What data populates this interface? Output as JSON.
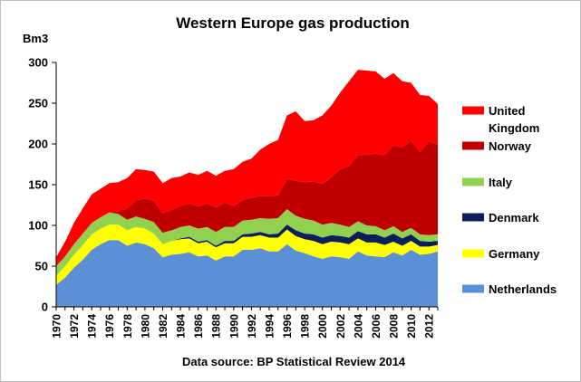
{
  "chart_data": {
    "type": "area",
    "stacked": true,
    "title": "Western Europe gas production",
    "ylabel": "Bm3",
    "xlabel": "",
    "source": "Data source: BP Statistical Review 2014",
    "ylim": [
      0,
      300
    ],
    "yticks": [
      0,
      50,
      100,
      150,
      200,
      250,
      300
    ],
    "xticks": [
      1970,
      1972,
      1974,
      1976,
      1978,
      1980,
      1982,
      1984,
      1986,
      1988,
      1990,
      1992,
      1994,
      1996,
      1998,
      2000,
      2002,
      2004,
      2006,
      2008,
      2010,
      2012
    ],
    "grid": false,
    "legend_position": "right",
    "x": [
      1970,
      1971,
      1972,
      1973,
      1974,
      1975,
      1976,
      1977,
      1978,
      1979,
      1980,
      1981,
      1982,
      1983,
      1984,
      1985,
      1986,
      1987,
      1988,
      1989,
      1990,
      1991,
      1992,
      1993,
      1994,
      1995,
      1996,
      1997,
      1998,
      1999,
      2000,
      2001,
      2002,
      2003,
      2004,
      2005,
      2006,
      2007,
      2008,
      2009,
      2010,
      2011,
      2012,
      2013
    ],
    "series": [
      {
        "name": "Netherlands",
        "color": "#5B8FD6",
        "values": [
          27,
          36,
          48,
          58,
          70,
          77,
          82,
          82,
          75,
          79,
          77,
          72,
          61,
          64,
          65,
          67,
          62,
          63,
          57,
          62,
          62,
          70,
          70,
          72,
          68,
          68,
          77,
          69,
          66,
          62,
          59,
          62,
          61,
          59,
          68,
          63,
          62,
          61,
          67,
          63,
          70,
          64,
          65,
          68
        ]
      },
      {
        "name": "Germany",
        "color": "#FFFF00",
        "values": [
          11,
          14,
          16,
          18,
          19,
          19,
          19,
          19,
          19,
          19,
          19,
          18,
          16,
          17,
          18,
          17,
          16,
          17,
          16,
          16,
          16,
          16,
          16,
          16,
          17,
          17,
          18,
          18,
          17,
          19,
          18,
          18,
          18,
          18,
          16,
          16,
          17,
          15,
          13,
          12,
          11,
          10,
          9,
          8
        ]
      },
      {
        "name": "Denmark",
        "color": "#0B1F5C",
        "values": [
          0,
          0,
          0,
          0,
          0,
          0,
          0,
          0,
          0,
          0,
          0,
          0,
          0,
          0,
          1,
          2,
          2,
          2,
          2,
          3,
          3,
          3,
          4,
          4,
          4,
          5,
          6,
          7,
          7,
          8,
          8,
          8,
          8,
          8,
          9,
          10,
          10,
          9,
          10,
          9,
          8,
          7,
          6,
          5
        ]
      },
      {
        "name": "Italy",
        "color": "#92D050",
        "values": [
          12,
          12,
          13,
          14,
          14,
          14,
          15,
          13,
          13,
          13,
          12,
          14,
          14,
          13,
          14,
          14,
          16,
          16,
          17,
          17,
          17,
          17,
          17,
          17,
          19,
          19,
          19,
          18,
          18,
          17,
          16,
          15,
          14,
          13,
          12,
          11,
          10,
          9,
          9,
          8,
          8,
          8,
          8,
          8
        ]
      },
      {
        "name": "Norway",
        "color": "#C00000",
        "values": [
          0,
          0,
          0,
          0,
          0,
          0,
          0,
          3,
          14,
          20,
          25,
          26,
          24,
          25,
          26,
          27,
          27,
          29,
          30,
          30,
          26,
          25,
          27,
          27,
          28,
          28,
          37,
          43,
          45,
          48,
          50,
          56,
          68,
          75,
          81,
          87,
          89,
          92,
          99,
          104,
          107,
          101,
          115,
          110
        ]
      },
      {
        "name": "United Kingdom",
        "color": "#FF0000",
        "values": [
          11,
          18,
          26,
          31,
          35,
          35,
          36,
          36,
          37,
          38,
          35,
          36,
          37,
          39,
          36,
          38,
          39,
          40,
          39,
          39,
          45,
          47,
          48,
          57,
          64,
          68,
          78,
          85,
          75,
          75,
          84,
          88,
          94,
          104,
          105,
          103,
          101,
          94,
          89,
          81,
          71,
          70,
          56,
          50
        ]
      }
    ],
    "legend_labels": {
      "Netherlands": "Netherlands",
      "Germany": "Germany",
      "Denmark": "Denmark",
      "Italy": "Italy",
      "Norway": "Norway",
      "United Kingdom": [
        "United",
        "Kingdom"
      ]
    }
  }
}
